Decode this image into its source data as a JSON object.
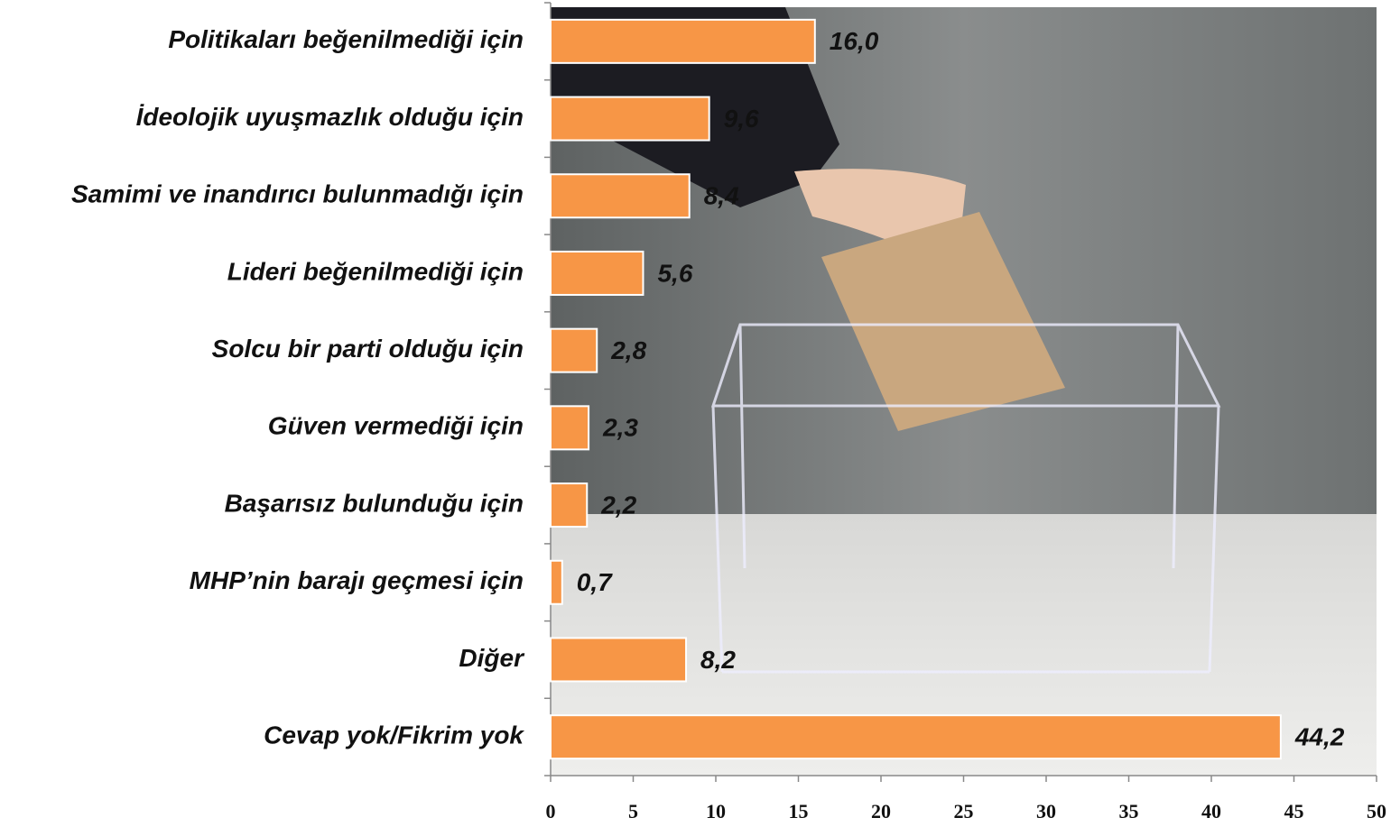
{
  "chart_data": {
    "type": "bar",
    "orientation": "horizontal",
    "categories": [
      "Politikaları beğenilmediği için",
      "İdeolojik uyuşmazlık olduğu için",
      "Samimi ve inandırıcı bulunmadığı için",
      "Lideri beğenilmediği için",
      "Solcu bir parti olduğu için",
      "Güven vermediği  için",
      "Başarısız bulunduğu için",
      "MHP’nin barajı geçmesi için",
      "Diğer",
      "Cevap yok/Fikrim yok"
    ],
    "values": [
      16.0,
      9.6,
      8.4,
      5.6,
      2.8,
      2.3,
      2.2,
      0.7,
      8.2,
      44.2
    ],
    "value_labels": [
      "16,0",
      "9,6",
      "8,4",
      "5,6",
      "2,8",
      "2,3",
      "2,2",
      "0,7",
      "8,2",
      "44,2"
    ],
    "color": "#f79646",
    "xlim": [
      0,
      50
    ],
    "xticks": [
      0,
      5,
      10,
      15,
      20,
      25,
      30,
      35,
      40,
      45,
      50
    ]
  }
}
